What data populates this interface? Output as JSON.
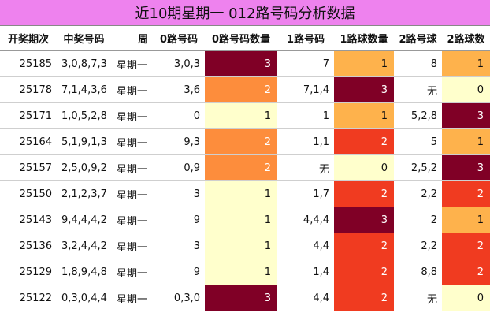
{
  "title": "近10期星期一 012路号码分析数据",
  "headers": [
    "开奖期次",
    "中奖号码",
    "周",
    "0路号码",
    "0路号码数量",
    "1路号码",
    "1路球数量",
    "2路号球",
    "2路球数"
  ],
  "colors": {
    "title_bg": "#ee82ee",
    "c0": "#ffffcc",
    "c1": "#feb24c",
    "c2_light": "#fd8d3c",
    "c2": "#f03b20",
    "c3": "#800026"
  },
  "rows": [
    {
      "issue": "25185",
      "numbers": "3,0,8,7,3",
      "weekday": "星期一",
      "r0": "3,0,3",
      "r0_count": "3",
      "r1": "7",
      "r1_count": "1",
      "r2": "8",
      "r2_count": "1"
    },
    {
      "issue": "25178",
      "numbers": "7,1,4,3,6",
      "weekday": "星期一",
      "r0": "3,6",
      "r0_count": "2",
      "r1": "7,1,4",
      "r1_count": "3",
      "r2": "无",
      "r2_count": "0"
    },
    {
      "issue": "25171",
      "numbers": "1,0,5,2,8",
      "weekday": "星期一",
      "r0": "0",
      "r0_count": "1",
      "r1": "1",
      "r1_count": "1",
      "r2": "5,2,8",
      "r2_count": "3"
    },
    {
      "issue": "25164",
      "numbers": "5,1,9,1,3",
      "weekday": "星期一",
      "r0": "9,3",
      "r0_count": "2",
      "r1": "1,1",
      "r1_count": "2",
      "r2": "5",
      "r2_count": "1"
    },
    {
      "issue": "25157",
      "numbers": "2,5,0,9,2",
      "weekday": "星期一",
      "r0": "0,9",
      "r0_count": "2",
      "r1": "无",
      "r1_count": "0",
      "r2": "2,5,2",
      "r2_count": "3"
    },
    {
      "issue": "25150",
      "numbers": "2,1,2,3,7",
      "weekday": "星期一",
      "r0": "3",
      "r0_count": "1",
      "r1": "1,7",
      "r1_count": "2",
      "r2": "2,2",
      "r2_count": "2"
    },
    {
      "issue": "25143",
      "numbers": "9,4,4,4,2",
      "weekday": "星期一",
      "r0": "9",
      "r0_count": "1",
      "r1": "4,4,4",
      "r1_count": "3",
      "r2": "2",
      "r2_count": "1"
    },
    {
      "issue": "25136",
      "numbers": "3,2,4,4,2",
      "weekday": "星期一",
      "r0": "3",
      "r0_count": "1",
      "r1": "4,4",
      "r1_count": "2",
      "r2": "2,2",
      "r2_count": "2"
    },
    {
      "issue": "25129",
      "numbers": "1,8,9,4,8",
      "weekday": "星期一",
      "r0": "9",
      "r0_count": "1",
      "r1": "1,4",
      "r1_count": "2",
      "r2": "8,8",
      "r2_count": "2"
    },
    {
      "issue": "25122",
      "numbers": "0,3,0,4,4",
      "weekday": "星期一",
      "r0": "0,3,0",
      "r0_count": "3",
      "r1": "4,4",
      "r1_count": "2",
      "r2": "无",
      "r2_count": "0"
    }
  ]
}
